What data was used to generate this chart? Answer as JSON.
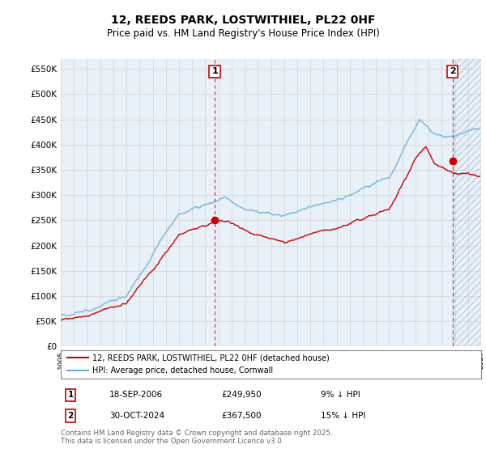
{
  "title": "12, REEDS PARK, LOSTWITHIEL, PL22 0HF",
  "subtitle": "Price paid vs. HM Land Registry's House Price Index (HPI)",
  "legend_line1": "12, REEDS PARK, LOSTWITHIEL, PL22 0HF (detached house)",
  "legend_line2": "HPI: Average price, detached house, Cornwall",
  "annotation1_label": "1",
  "annotation1_date": "18-SEP-2006",
  "annotation1_price": "£249,950",
  "annotation1_hpi": "9% ↓ HPI",
  "annotation2_label": "2",
  "annotation2_date": "30-OCT-2024",
  "annotation2_price": "£367,500",
  "annotation2_hpi": "15% ↓ HPI",
  "sale1_year": 2006.72,
  "sale1_price": 249950,
  "sale2_year": 2024.83,
  "sale2_price": 367500,
  "hpi_color": "#6baed6",
  "hpi_fill_color": "#ddeeff",
  "price_color": "#cc0000",
  "marker_color": "#cc0000",
  "vline_color": "#cc0000",
  "grid_color": "#cccccc",
  "background_color": "#e8f0f8",
  "ylim": [
    0,
    570000
  ],
  "xlim_start": 1995,
  "xlim_end": 2027,
  "footer": "Contains HM Land Registry data © Crown copyright and database right 2025.\nThis data is licensed under the Open Government Licence v3.0."
}
